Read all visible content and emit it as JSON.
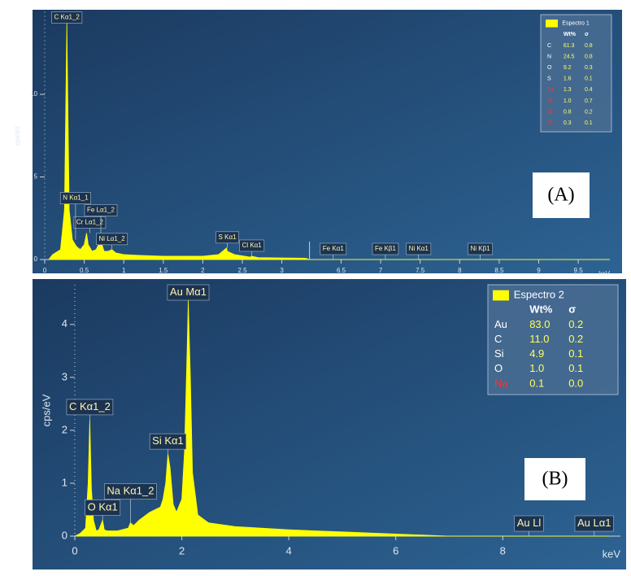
{
  "chart_data": [
    {
      "type": "area",
      "panel_label": "(A)",
      "y_label": "cps/eV",
      "x_label": "keV",
      "color": "#ffff00",
      "x": [
        0.05,
        0.1,
        0.2,
        0.25,
        0.28,
        0.31,
        0.35,
        0.4,
        0.45,
        0.5,
        0.53,
        0.55,
        0.6,
        0.65,
        0.7,
        0.72,
        0.75,
        0.8,
        0.85,
        0.9,
        1.0,
        1.2,
        1.5,
        1.8,
        2.0,
        2.2,
        2.3,
        2.31,
        2.4,
        2.6,
        2.62,
        2.7,
        3.0,
        3.3,
        6.1,
        9.9
      ],
      "values": [
        0,
        0.3,
        0.6,
        3,
        14.3,
        3,
        1.2,
        0.8,
        0.6,
        0.9,
        1.6,
        0.9,
        0.5,
        0.6,
        1.1,
        1.0,
        0.5,
        0.5,
        0.6,
        0.4,
        0.3,
        0.25,
        0.2,
        0.2,
        0.2,
        0.3,
        0.7,
        0.5,
        0.3,
        0.15,
        0.2,
        0.12,
        0.1,
        0.08,
        0,
        0
      ],
      "xlim": [
        0,
        9.9
      ],
      "xbreak": [
        3.35,
        6.1
      ],
      "xticks": [
        0,
        0.5,
        1,
        1.5,
        2,
        2.5,
        3,
        6.5,
        7,
        7.5,
        8,
        8.5,
        9,
        9.5
      ],
      "ylim": [
        0,
        15
      ],
      "yticks": [
        0,
        5,
        10
      ],
      "annotations": [
        {
          "text": "C Kα1_2",
          "x": 0.28
        },
        {
          "text": "Cr Lα1_2",
          "x": 0.57
        },
        {
          "text": "Fe Lα1_2",
          "x": 0.71
        },
        {
          "text": "N Kα1_1",
          "x": 0.39
        },
        {
          "text": "Ni Lα1_2",
          "x": 0.85
        },
        {
          "text": "S Kα1",
          "x": 2.31
        },
        {
          "text": "Cl Kα1",
          "x": 2.62
        },
        {
          "text": "Fe Kα1",
          "x": 6.4
        },
        {
          "text": "Fe Kβ1",
          "x": 7.06
        },
        {
          "text": "Ni Kα1",
          "x": 7.48
        },
        {
          "text": "Ni Kβ1",
          "x": 8.26
        }
      ],
      "legend": {
        "name": "Espectro 1",
        "columns": [
          "Wt%",
          "σ"
        ],
        "rows": [
          {
            "element": "C",
            "wt": "61.3",
            "sigma": "0.8",
            "color": "#ffffff"
          },
          {
            "element": "N",
            "wt": "24.5",
            "sigma": "0.8",
            "color": "#ffffff"
          },
          {
            "element": "O",
            "wt": "9.2",
            "sigma": "0.3",
            "color": "#ffffff"
          },
          {
            "element": "S",
            "wt": "1.6",
            "sigma": "0.1",
            "color": "#ffffff"
          },
          {
            "element": "Fe",
            "wt": "1.3",
            "sigma": "0.4",
            "color": "#ff3030"
          },
          {
            "element": "Ni",
            "wt": "1.0",
            "sigma": "0.7",
            "color": "#ff3030"
          },
          {
            "element": "Cr",
            "wt": "0.8",
            "sigma": "0.2",
            "color": "#ff3030"
          },
          {
            "element": "Cl",
            "wt": "0.3",
            "sigma": "0.1",
            "color": "#ff3030"
          }
        ]
      }
    },
    {
      "type": "area",
      "panel_label": "(B)",
      "y_label": "cps/eV",
      "x_label": "keV",
      "color": "#ffff00",
      "x": [
        0,
        0.1,
        0.2,
        0.25,
        0.28,
        0.31,
        0.35,
        0.4,
        0.45,
        0.52,
        0.55,
        0.6,
        0.8,
        1.0,
        1.04,
        1.1,
        1.2,
        1.4,
        1.6,
        1.65,
        1.7,
        1.74,
        1.78,
        1.84,
        1.9,
        2.0,
        2.05,
        2.1,
        2.12,
        2.16,
        2.2,
        2.3,
        2.5,
        3,
        4,
        5,
        6,
        6.5,
        7,
        10
      ],
      "values": [
        0,
        0.05,
        0.15,
        1.0,
        2.2,
        0.9,
        0.3,
        0.1,
        0.12,
        0.3,
        0.12,
        0.1,
        0.1,
        0.15,
        0.25,
        0.2,
        0.3,
        0.45,
        0.55,
        0.7,
        1.0,
        1.55,
        1.3,
        0.6,
        0.45,
        0.7,
        1.6,
        3.5,
        4.45,
        3.0,
        1.2,
        0.4,
        0.25,
        0.18,
        0.12,
        0.08,
        0.04,
        0.02,
        0,
        0
      ],
      "xlim": [
        0,
        10.2
      ],
      "xticks": [
        0,
        2,
        4,
        6,
        8
      ],
      "ylim": [
        0,
        4.75
      ],
      "yticks": [
        0,
        1,
        2,
        3,
        4
      ],
      "annotations": [
        {
          "text": "Au Mα1",
          "x": 2.12
        },
        {
          "text": "C Kα1_2",
          "x": 0.28
        },
        {
          "text": "Si Kα1",
          "x": 1.74
        },
        {
          "text": "O Kα1",
          "x": 0.52
        },
        {
          "text": "Na Kα1_2",
          "x": 1.04
        },
        {
          "text": "Au Ll",
          "x": 8.49
        },
        {
          "text": "Au Lα1",
          "x": 9.71
        }
      ],
      "legend": {
        "name": "Espectro 2",
        "columns": [
          "Wt%",
          "σ"
        ],
        "rows": [
          {
            "element": "Au",
            "wt": "83.0",
            "sigma": "0.2",
            "color": "#ffffff"
          },
          {
            "element": "C",
            "wt": "11.0",
            "sigma": "0.2",
            "color": "#ffffff"
          },
          {
            "element": "Si",
            "wt": "4.9",
            "sigma": "0.1",
            "color": "#ffffff"
          },
          {
            "element": "O",
            "wt": "1.0",
            "sigma": "0.1",
            "color": "#ffffff"
          },
          {
            "element": "Na",
            "wt": "0.1",
            "sigma": "0.0",
            "color": "#ff3030"
          }
        ]
      }
    }
  ]
}
